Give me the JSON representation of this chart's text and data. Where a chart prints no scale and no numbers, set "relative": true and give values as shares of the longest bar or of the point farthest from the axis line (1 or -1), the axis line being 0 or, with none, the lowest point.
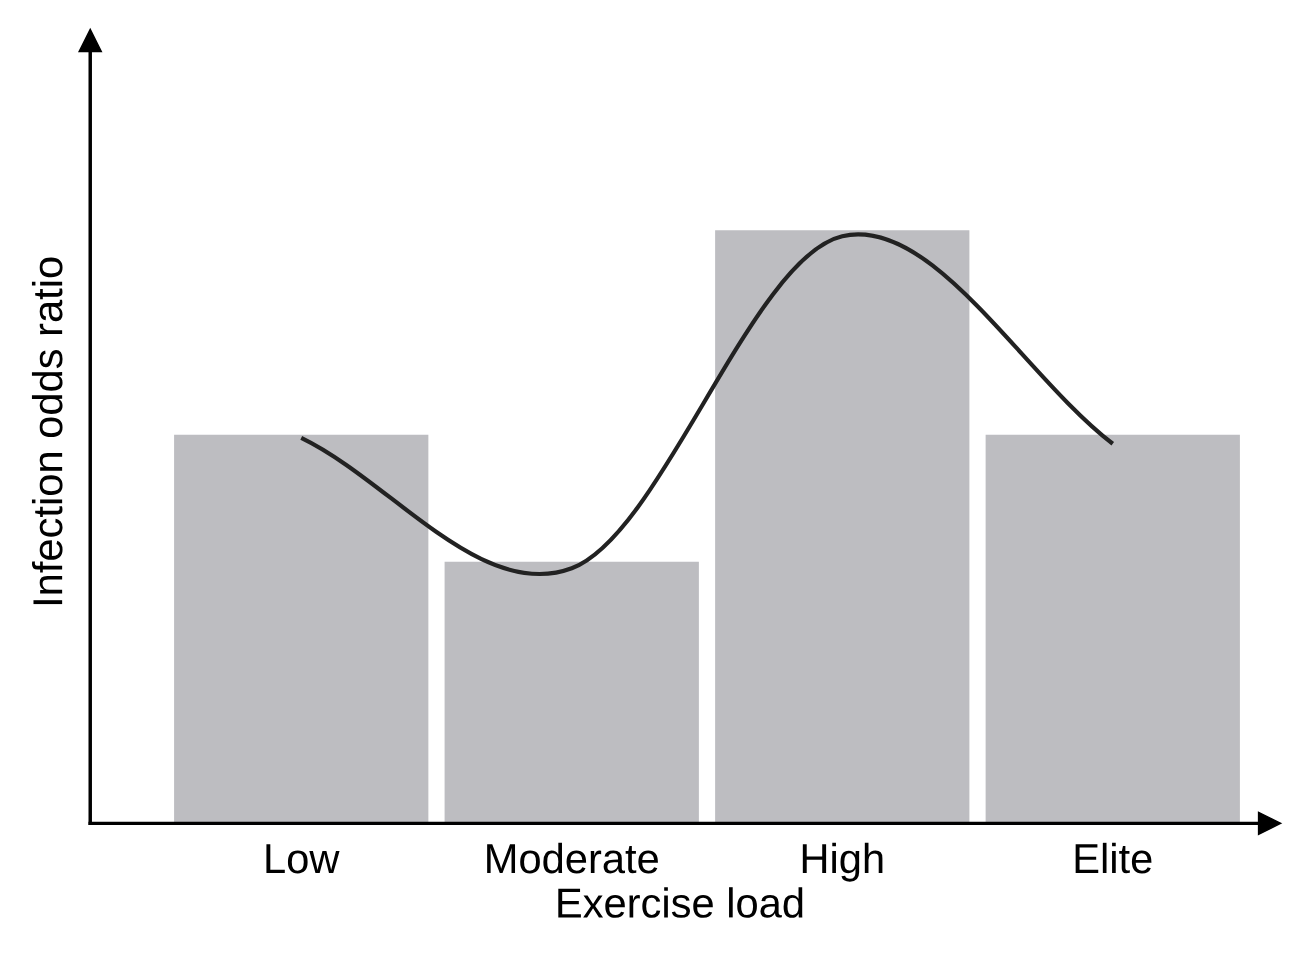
{
  "chart_data": {
    "type": "bar",
    "relative": true,
    "xlabel": "Exercise load",
    "ylabel": "Infection odds ratio",
    "categories": [
      "Low",
      "Moderate",
      "High",
      "Elite"
    ],
    "series": [
      {
        "color": "#bdbdc1",
        "values": [
          0.655,
          0.441,
          1,
          0.655
        ]
      },
      {
        "type": "line",
        "color": "#222222",
        "values": [
          0.65,
          0.43,
          0.99,
          0.64
        ]
      }
    ],
    "grid": false,
    "legend": false
  }
}
